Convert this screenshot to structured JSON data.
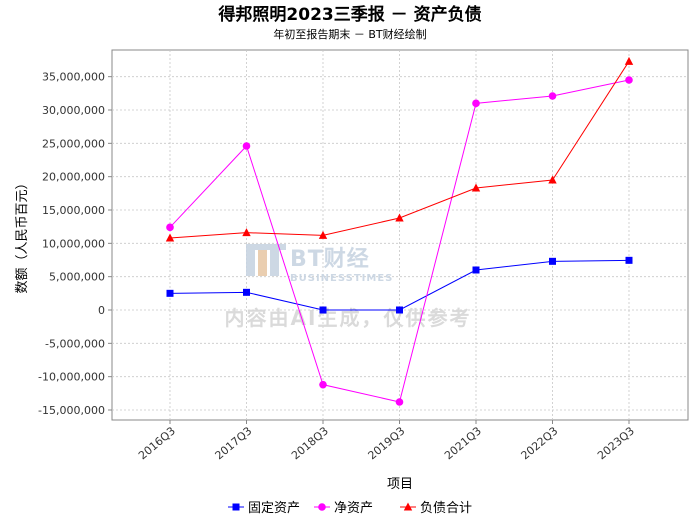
{
  "chart_data": {
    "type": "line",
    "title": "得邦照明2023三季报 － 资产负债",
    "subtitle": "年初至报告期末 － BT财经绘制",
    "xlabel": "项目",
    "ylabel": "数额（人民币百元）",
    "categories": [
      "2016Q3",
      "2017Q3",
      "2018Q3",
      "2019Q3",
      "2021Q3",
      "2022Q3",
      "2023Q3"
    ],
    "ylim": [
      -16500000,
      39000000
    ],
    "yticks": [
      -15000000,
      -10000000,
      -5000000,
      0,
      5000000,
      10000000,
      15000000,
      20000000,
      25000000,
      30000000,
      35000000
    ],
    "ytick_labels": [
      "-15,000,000",
      "-10,000,000",
      "-5,000,000",
      "0",
      "5,000,000",
      "10,000,000",
      "15,000,000",
      "20,000,000",
      "25,000,000",
      "30,000,000",
      "35,000,000"
    ],
    "grid": true,
    "legend_position": "bottom",
    "series": [
      {
        "name": "固定资产",
        "color": "#0000ff",
        "marker": "square",
        "values": [
          2500000,
          2650000,
          0,
          0,
          6000000,
          7300000,
          7450000
        ]
      },
      {
        "name": "净资产",
        "color": "#ff00ff",
        "marker": "circle",
        "values": [
          12400000,
          24600000,
          -11200000,
          -13800000,
          31000000,
          32100000,
          34500000
        ]
      },
      {
        "name": "负债合计",
        "color": "#ff0000",
        "marker": "triangle",
        "values": [
          10800000,
          11600000,
          11200000,
          13800000,
          18300000,
          19500000,
          37300000
        ]
      }
    ]
  },
  "watermark": {
    "logo_text": "BT财经",
    "logo_subtext": "BUSINESSTIMES",
    "text": "内容由AI生成，仅供参考"
  }
}
